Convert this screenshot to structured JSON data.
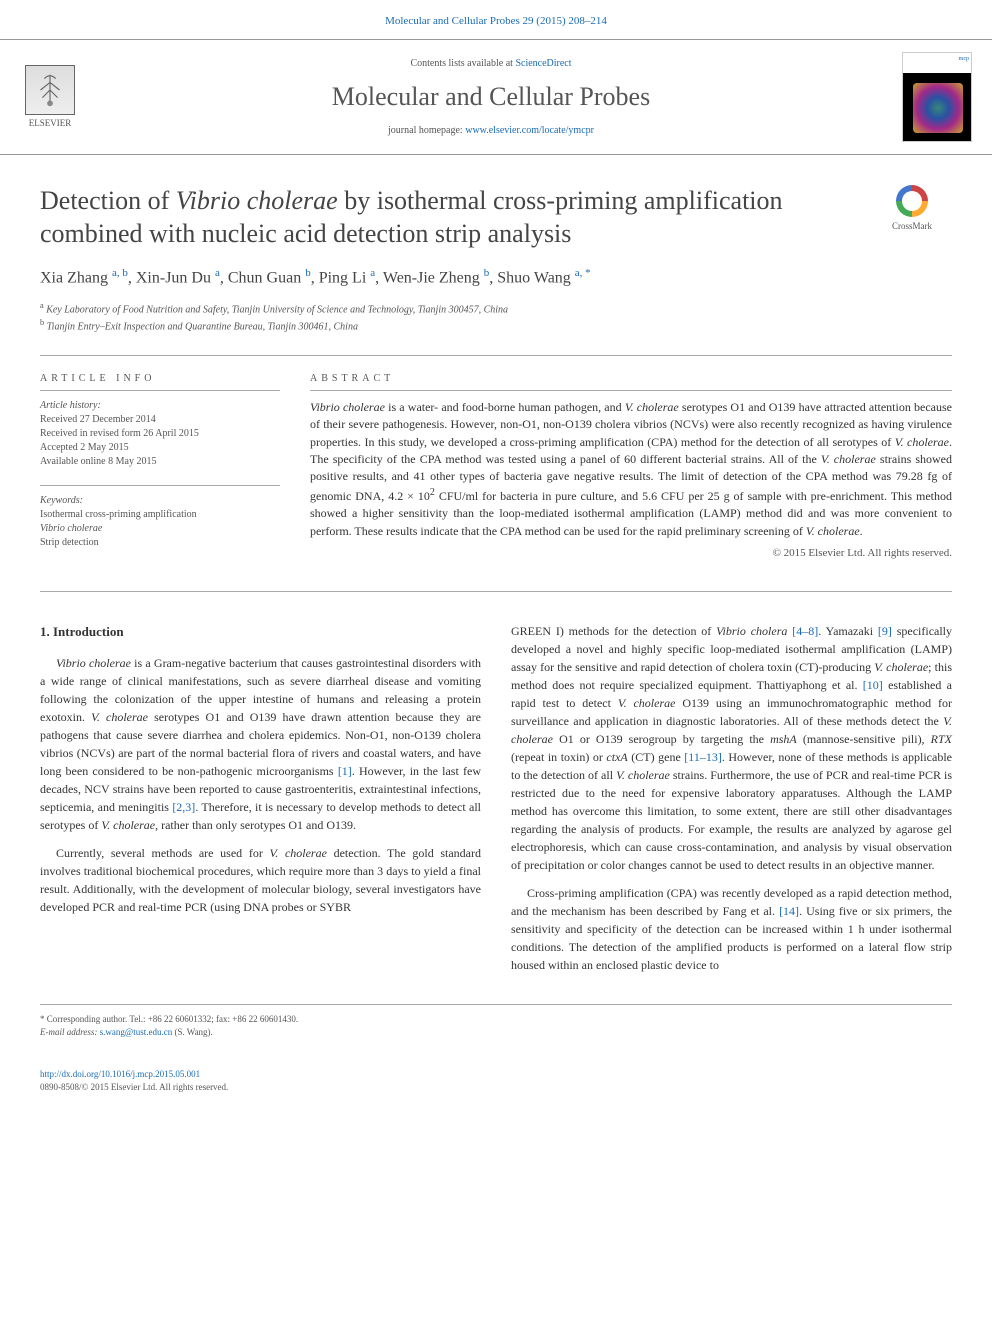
{
  "header": {
    "citation": "Molecular and Cellular Probes 29 (2015) 208–214",
    "contents_prefix": "Contents lists available at ",
    "contents_link": "ScienceDirect",
    "journal_name": "Molecular and Cellular Probes",
    "homepage_prefix": "journal homepage: ",
    "homepage_url": "www.elsevier.com/locate/ymcpr",
    "publisher": "ELSEVIER",
    "cover_label": "mcp",
    "crossmark": "CrossMark"
  },
  "title": {
    "part1": "Detection of ",
    "italic": "Vibrio cholerae",
    "part2": " by isothermal cross-priming amplification combined with nucleic acid detection strip analysis"
  },
  "authors": {
    "line_html": "Xia Zhang <sup>a, b</sup>, Xin-Jun Du <sup>a</sup>, Chun Guan <sup>b</sup>, Ping Li <sup>a</sup>, Wen-Jie Zheng <sup>b</sup>, Shuo Wang <sup>a, *</sup>"
  },
  "affiliations": {
    "a": "Key Laboratory of Food Nutrition and Safety, Tianjin University of Science and Technology, Tianjin 300457, China",
    "b": "Tianjin Entry–Exit Inspection and Quarantine Bureau, Tianjin 300461, China"
  },
  "article_info": {
    "label": "ARTICLE INFO",
    "history_label": "Article history:",
    "received": "Received 27 December 2014",
    "revised": "Received in revised form 26 April 2015",
    "accepted": "Accepted 2 May 2015",
    "online": "Available online 8 May 2015",
    "keywords_label": "Keywords:",
    "keywords": [
      "Isothermal cross-priming amplification",
      "Vibrio cholerae",
      "Strip detection"
    ]
  },
  "abstract": {
    "label": "ABSTRACT",
    "text_html": "<em>Vibrio cholerae</em> is a water- and food-borne human pathogen, and <em>V. cholerae</em> serotypes O1 and O139 have attracted attention because of their severe pathogenesis. However, non-O1, non-O139 cholera vibrios (NCVs) were also recently recognized as having virulence properties. In this study, we developed a cross-priming amplification (CPA) method for the detection of all serotypes of <em>V. cholerae</em>. The specificity of the CPA method was tested using a panel of 60 different bacterial strains. All of the <em>V. cholerae</em> strains showed positive results, and 41 other types of bacteria gave negative results. The limit of detection of the CPA method was 79.28 fg of genomic DNA, 4.2 × 10<sup>2</sup> CFU/ml for bacteria in pure culture, and 5.6 CFU per 25 g of sample with pre-enrichment. This method showed a higher sensitivity than the loop-mediated isothermal amplification (LAMP) method did and was more convenient to perform. These results indicate that the CPA method can be used for the rapid preliminary screening of <em>V. cholerae</em>.",
    "copyright": "© 2015 Elsevier Ltd. All rights reserved."
  },
  "body": {
    "heading": "1. Introduction",
    "col1": {
      "p1_html": "<em>Vibrio cholerae</em> is a Gram-negative bacterium that causes gastrointestinal disorders with a wide range of clinical manifestations, such as severe diarrheal disease and vomiting following the colonization of the upper intestine of humans and releasing a protein exotoxin. <em>V. cholerae</em> serotypes O1 and O139 have drawn attention because they are pathogens that cause severe diarrhea and cholera epidemics. Non-O1, non-O139 cholera vibrios (NCVs) are part of the normal bacterial flora of rivers and coastal waters, and have long been considered to be non-pathogenic microorganisms <a class='ref' href='#'>[1]</a>. However, in the last few decades, NCV strains have been reported to cause gastroenteritis, extraintestinal infections, septicemia, and meningitis <a class='ref' href='#'>[2,3]</a>. Therefore, it is necessary to develop methods to detect all serotypes of <em>V. cholerae</em>, rather than only serotypes O1 and O139.",
      "p2_html": "Currently, several methods are used for <em>V. cholerae</em> detection. The gold standard involves traditional biochemical procedures, which require more than 3 days to yield a final result. Additionally, with the development of molecular biology, several investigators have developed PCR and real-time PCR (using DNA probes or SYBR"
    },
    "col2": {
      "p1_html": "GREEN I) methods for the detection of <em>Vibrio cholera</em> <a class='ref' href='#'>[4–8]</a>. Yamazaki <a class='ref' href='#'>[9]</a> specifically developed a novel and highly specific loop-mediated isothermal amplification (LAMP) assay for the sensitive and rapid detection of cholera toxin (CT)-producing <em>V. cholerae</em>; this method does not require specialized equipment. Thattiyaphong et al. <a class='ref' href='#'>[10]</a> established a rapid test to detect <em>V. cholerae</em> O139 using an immunochromatographic method for surveillance and application in diagnostic laboratories. All of these methods detect the <em>V. cholerae</em> O1 or O139 serogroup by targeting the <em>mshA</em> (mannose-sensitive pili), <em>RTX</em> (repeat in toxin) or <em>ctxA</em> (CT) gene <a class='ref' href='#'>[11–13]</a>. However, none of these methods is applicable to the detection of all <em>V. cholerae</em> strains. Furthermore, the use of PCR and real-time PCR is restricted due to the need for expensive laboratory apparatuses. Although the LAMP method has overcome this limitation, to some extent, there are still other disadvantages regarding the analysis of products. For example, the results are analyzed by agarose gel electrophoresis, which can cause cross-contamination, and analysis by visual observation of precipitation or color changes cannot be used to detect results in an objective manner.",
      "p2_html": "Cross-priming amplification (CPA) was recently developed as a rapid detection method, and the mechanism has been described by Fang et al. <a class='ref' href='#'>[14]</a>. Using five or six primers, the sensitivity and specificity of the detection can be increased within 1 h under isothermal conditions. The detection of the amplified products is performed on a lateral flow strip housed within an enclosed plastic device to"
    }
  },
  "footer": {
    "corresponding_label": "* Corresponding author. Tel.: +86 22 60601332; fax: +86 22 60601430.",
    "email_label": "E-mail address:",
    "email": "s.wang@tust.edu.cn",
    "email_suffix": "(S. Wang).",
    "doi": "http://dx.doi.org/10.1016/j.mcp.2015.05.001",
    "issn": "0890-8508/© 2015 Elsevier Ltd. All rights reserved."
  },
  "colors": {
    "link": "#1a6bb3",
    "text": "#333333",
    "muted": "#555555",
    "rule": "#aaaaaa"
  }
}
